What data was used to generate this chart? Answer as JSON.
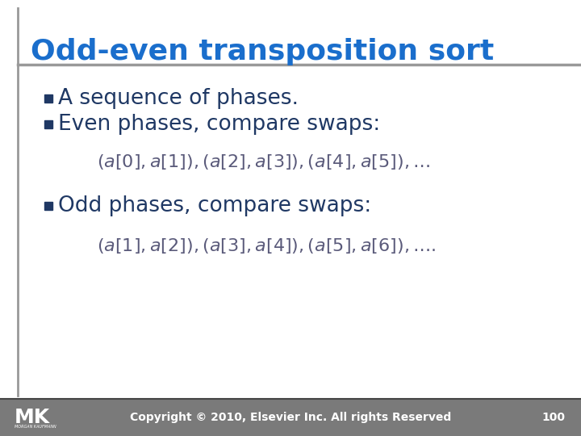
{
  "title": "Odd-even transposition sort",
  "title_color": "#1a6ecc",
  "title_fontsize": 26,
  "bg_color": "#FFFFFF",
  "bullet_color": "#1F3864",
  "bullet_text_color": "#1F3864",
  "bullet_fontsize": 19,
  "bullets": [
    "A sequence of phases.",
    "Even phases, compare swaps:"
  ],
  "bullet3": "Odd phases, compare swaps:",
  "formula_fontsize": 16,
  "formula_color": "#5a5a7a",
  "footer_bg": "#7a7a7a",
  "footer_text": "Copyright © 2010, Elsevier Inc. All rights Reserved",
  "footer_page": "100",
  "footer_fontsize": 10,
  "header_line_color": "#999999",
  "left_bar_color": "#999999"
}
